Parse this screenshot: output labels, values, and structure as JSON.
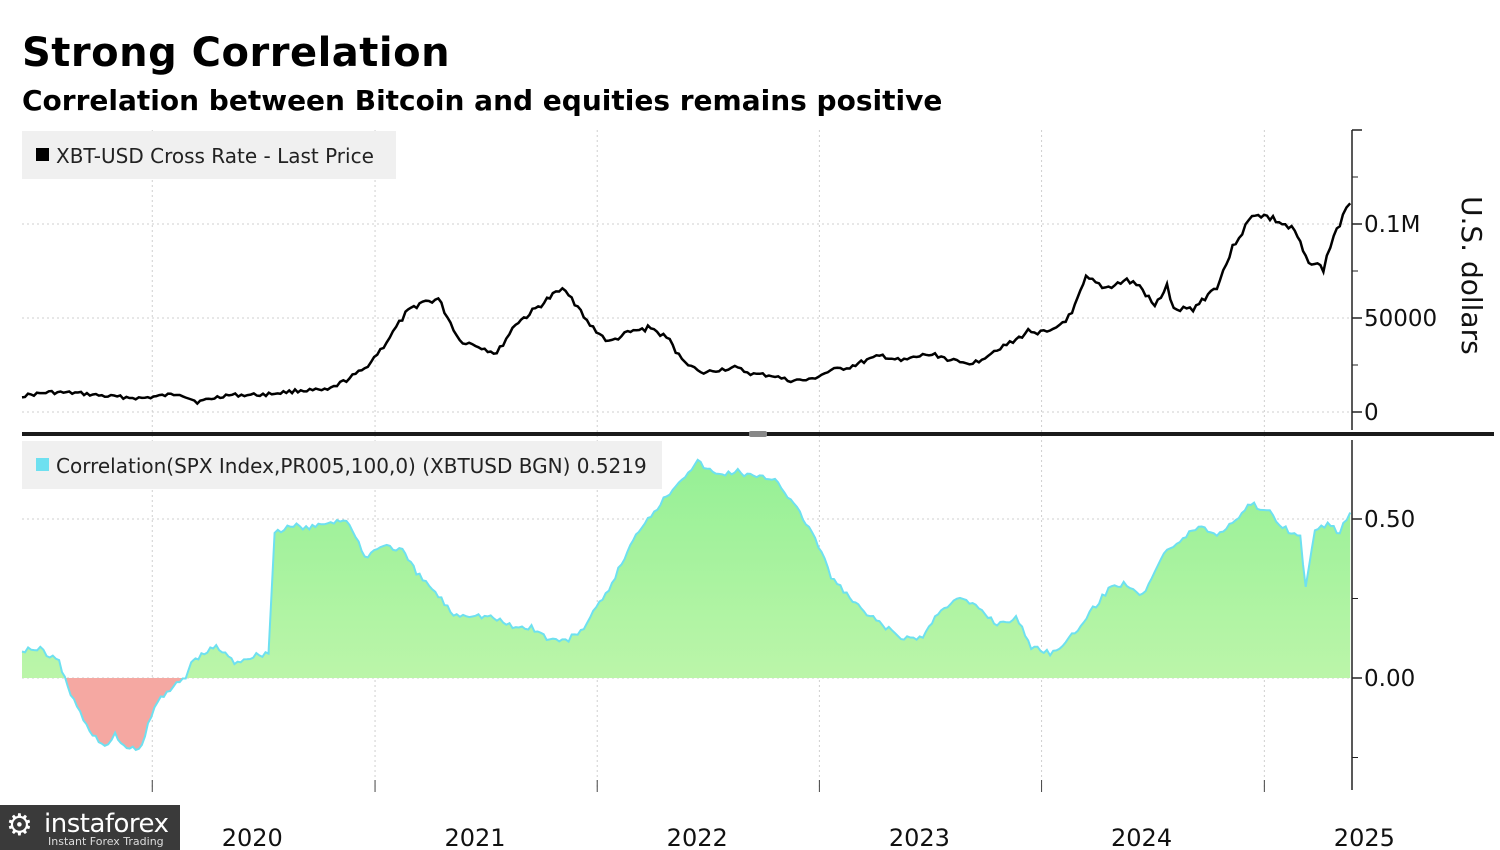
{
  "title": "Strong Correlation",
  "subtitle": "Correlation between Bitcoin and equities remains positive",
  "watermark": {
    "brand": "instaforex",
    "tagline": "Instant Forex Trading"
  },
  "colors": {
    "price_line": "#000000",
    "corr_positive_top": "#95f095",
    "corr_positive_bottom": "#c8f7b0",
    "corr_negative": "#f5a8a2",
    "corr_line": "#6ee0f0",
    "legend_bg": "#f0f0f0",
    "grid": "#cfcfcf"
  },
  "chart_data": [
    {
      "type": "line",
      "legend": "XBT-USD Cross Rate - Last Price",
      "ylabel": "U.S. dollars",
      "ylim": [
        0,
        140000
      ],
      "yticks": [
        0,
        50000,
        100000
      ],
      "ytick_labels": [
        "0",
        "50000",
        "0.1M"
      ],
      "x_start": "2019-06-01",
      "x_end": "2025-05-25",
      "grid": true,
      "legend_position": "top-left",
      "series": [
        {
          "x": [
            "2019-06-01",
            "2019-07-15",
            "2019-09-01",
            "2019-10-15",
            "2019-12-15",
            "2020-02-15",
            "2020-03-15",
            "2020-05-01",
            "2020-07-01",
            "2020-09-01",
            "2020-10-15",
            "2020-11-15",
            "2020-12-15",
            "2021-01-15",
            "2021-02-20",
            "2021-03-15",
            "2021-04-15",
            "2021-05-20",
            "2021-06-20",
            "2021-07-20",
            "2021-08-20",
            "2021-09-07",
            "2021-10-20",
            "2021-11-10",
            "2021-12-15",
            "2022-01-20",
            "2022-02-20",
            "2022-03-30",
            "2022-04-30",
            "2022-05-15",
            "2022-06-20",
            "2022-07-20",
            "2022-08-15",
            "2022-09-15",
            "2022-10-15",
            "2022-11-10",
            "2022-12-15",
            "2023-01-20",
            "2023-02-20",
            "2023-03-20",
            "2023-04-15",
            "2023-05-15",
            "2023-06-25",
            "2023-07-15",
            "2023-08-20",
            "2023-09-15",
            "2023-10-25",
            "2023-11-15",
            "2023-12-10",
            "2024-01-15",
            "2024-02-20",
            "2024-03-14",
            "2024-04-15",
            "2024-05-20",
            "2024-06-10",
            "2024-07-05",
            "2024-07-25",
            "2024-08-05",
            "2024-09-06",
            "2024-10-15",
            "2024-11-15",
            "2024-12-17",
            "2025-01-20",
            "2025-02-20",
            "2025-03-10",
            "2025-04-08",
            "2025-04-25",
            "2025-05-10",
            "2025-05-22"
          ],
          "values": [
            8500,
            10500,
            10000,
            8500,
            7300,
            9800,
            5300,
            8900,
            9200,
            11500,
            11500,
            17000,
            23000,
            35000,
            52000,
            58000,
            60000,
            38000,
            35000,
            31000,
            47000,
            51000,
            62000,
            66000,
            48000,
            37000,
            42000,
            45000,
            38000,
            30000,
            20500,
            22500,
            23500,
            20000,
            19500,
            16800,
            16900,
            22000,
            24000,
            27500,
            30000,
            27000,
            30500,
            30000,
            26000,
            26500,
            34500,
            37000,
            43000,
            42000,
            52000,
            71000,
            66000,
            70000,
            67000,
            56000,
            67000,
            54000,
            55000,
            67000,
            91000,
            106000,
            102000,
            96000,
            82000,
            76000,
            94000,
            103000,
            111000
          ]
        }
      ]
    },
    {
      "type": "area",
      "legend": "Correlation(SPX Index,PR005,100,0) (XBTUSD BGN) 0.5219",
      "ylim": [
        -0.35,
        0.75
      ],
      "yticks": [
        0.0,
        0.5
      ],
      "ytick_labels": [
        "0.00",
        "0.50"
      ],
      "x_start": "2019-06-01",
      "x_end": "2025-05-25",
      "last_value": 0.5219,
      "grid": true,
      "legend_position": "top-left",
      "series": [
        {
          "x": [
            "2019-06-01",
            "2019-07-01",
            "2019-08-01",
            "2019-08-20",
            "2019-09-15",
            "2019-10-15",
            "2019-11-01",
            "2019-11-20",
            "2019-12-10",
            "2019-12-25",
            "2020-01-10",
            "2020-01-25",
            "2020-02-10",
            "2020-02-25",
            "2020-03-05",
            "2020-03-12",
            "2020-04-15",
            "2020-05-15",
            "2020-06-15",
            "2020-07-10",
            "2020-07-20",
            "2020-08-10",
            "2020-08-25",
            "2020-09-15",
            "2020-10-15",
            "2020-11-15",
            "2020-12-15",
            "2021-01-15",
            "2021-02-15",
            "2021-03-10",
            "2021-04-10",
            "2021-05-10",
            "2021-06-10",
            "2021-07-15",
            "2021-08-15",
            "2021-09-15",
            "2021-10-15",
            "2021-11-15",
            "2021-12-10",
            "2022-01-15",
            "2022-02-15",
            "2022-03-15",
            "2022-04-15",
            "2022-05-15",
            "2022-06-15",
            "2022-07-15",
            "2022-08-20",
            "2022-09-20",
            "2022-10-20",
            "2022-11-15",
            "2022-12-20",
            "2023-01-20",
            "2023-02-20",
            "2023-03-20",
            "2023-04-20",
            "2023-05-20",
            "2023-06-20",
            "2023-07-20",
            "2023-08-20",
            "2023-09-20",
            "2023-10-20",
            "2023-11-20",
            "2023-12-15",
            "2024-01-15",
            "2024-02-15",
            "2024-03-15",
            "2024-04-20",
            "2024-05-15",
            "2024-06-15",
            "2024-07-20",
            "2024-08-10",
            "2024-09-15",
            "2024-10-15",
            "2024-11-15",
            "2024-12-10",
            "2025-01-10",
            "2025-02-05",
            "2025-03-01",
            "2025-03-10",
            "2025-03-25",
            "2025-04-15",
            "2025-05-05",
            "2025-05-22"
          ],
          "values": [
            0.09,
            0.09,
            0.05,
            -0.05,
            -0.15,
            -0.22,
            -0.18,
            -0.22,
            -0.23,
            -0.15,
            -0.07,
            -0.04,
            -0.02,
            0.0,
            0.05,
            0.06,
            0.1,
            0.05,
            0.07,
            0.08,
            0.46,
            0.47,
            0.48,
            0.47,
            0.49,
            0.5,
            0.38,
            0.42,
            0.4,
            0.33,
            0.27,
            0.2,
            0.2,
            0.19,
            0.16,
            0.16,
            0.12,
            0.12,
            0.16,
            0.26,
            0.38,
            0.48,
            0.55,
            0.62,
            0.68,
            0.64,
            0.65,
            0.63,
            0.63,
            0.56,
            0.46,
            0.32,
            0.25,
            0.2,
            0.16,
            0.12,
            0.13,
            0.22,
            0.25,
            0.22,
            0.17,
            0.19,
            0.1,
            0.08,
            0.12,
            0.19,
            0.28,
            0.3,
            0.26,
            0.4,
            0.42,
            0.48,
            0.45,
            0.5,
            0.55,
            0.52,
            0.47,
            0.44,
            0.29,
            0.46,
            0.48,
            0.46,
            0.52
          ]
        }
      ]
    }
  ],
  "xaxis": {
    "tick_labels": [
      "2020",
      "2021",
      "2022",
      "2023",
      "2024",
      "2025"
    ]
  }
}
